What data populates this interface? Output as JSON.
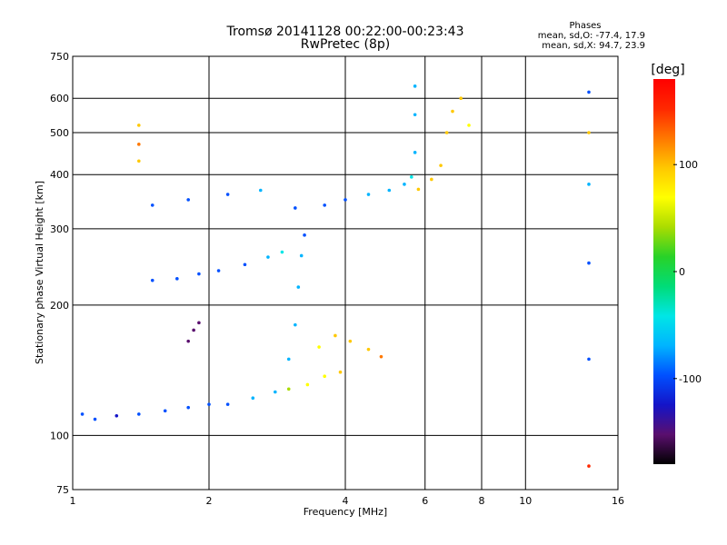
{
  "header": {
    "title": "Tromsø 20141128 00:22:00-00:23:43",
    "subtitle": "RwPretec (8p)"
  },
  "phases": {
    "heading": "Phases",
    "o_line": "mean, sd,O: -77.4, 17.9",
    "x_line": "mean, sd,X:  94.7, 23.9"
  },
  "colorbar": {
    "label": "[deg]",
    "ticks": [
      "100",
      "0",
      "-100"
    ]
  },
  "chart_data": {
    "type": "scatter",
    "title": "Tromsø 20141128 00:22:00-00:23:43",
    "subtitle": "RwPretec (8p)",
    "xlabel": "Frequency [MHz]",
    "ylabel": "Stationary phase Virtual Height [km]",
    "x_scale": "log2",
    "y_scale": "log",
    "xlim": [
      1,
      16
    ],
    "ylim": [
      75,
      750
    ],
    "x_ticks": [
      1,
      2,
      4,
      6,
      8,
      10,
      16
    ],
    "y_ticks": [
      75,
      100,
      200,
      300,
      400,
      500,
      600,
      750
    ],
    "grid": true,
    "colorscale": "rainbow",
    "colorbar_range": [
      -180,
      180
    ],
    "colorbar_ticks": [
      100,
      0,
      -100
    ],
    "colorbar_colors": [
      "#000000",
      "#5a0f6e",
      "#1414c8",
      "#0050ff",
      "#00b4ff",
      "#00e6e6",
      "#00dc78",
      "#28d228",
      "#aadc00",
      "#ffff00",
      "#ffc800",
      "#ff7800",
      "#ff2800",
      "#ff0000"
    ],
    "series": [
      {
        "points": [
          [
            1.05,
            112,
            -110
          ],
          [
            1.12,
            109,
            -105
          ],
          [
            1.25,
            111,
            -115
          ],
          [
            1.4,
            112,
            -110
          ],
          [
            1.6,
            114,
            -100
          ],
          [
            1.8,
            116,
            -95
          ],
          [
            2.0,
            118,
            -90
          ],
          [
            2.2,
            118,
            -85
          ],
          [
            2.5,
            122,
            -80
          ],
          [
            2.8,
            126,
            -60
          ],
          [
            3.0,
            128,
            30
          ],
          [
            3.3,
            131,
            60
          ],
          [
            3.6,
            137,
            80
          ],
          [
            3.9,
            140,
            100
          ]
        ]
      },
      {
        "points": [
          [
            1.5,
            228,
            -105
          ],
          [
            1.7,
            230,
            -100
          ],
          [
            1.9,
            236,
            -95
          ],
          [
            2.1,
            240,
            -90
          ],
          [
            2.4,
            248,
            -85
          ],
          [
            2.7,
            258,
            -80
          ],
          [
            2.9,
            265,
            -40
          ]
        ]
      },
      {
        "points": [
          [
            1.5,
            340,
            -100
          ],
          [
            1.8,
            350,
            -95
          ],
          [
            2.2,
            360,
            -90
          ],
          [
            2.6,
            368,
            -70
          ],
          [
            3.1,
            335,
            -95
          ],
          [
            3.6,
            340,
            -90
          ],
          [
            4.0,
            350,
            -85
          ],
          [
            4.5,
            360,
            -80
          ],
          [
            5.0,
            368,
            -70
          ],
          [
            5.4,
            380,
            -60
          ],
          [
            5.6,
            395,
            -50
          ],
          [
            5.7,
            450,
            -60
          ],
          [
            5.7,
            550,
            -70
          ],
          [
            5.7,
            640,
            -75
          ]
        ]
      },
      {
        "points": [
          [
            5.8,
            370,
            100
          ],
          [
            6.2,
            390,
            110
          ],
          [
            6.5,
            420,
            100
          ],
          [
            6.7,
            500,
            95
          ],
          [
            6.9,
            560,
            90
          ],
          [
            7.2,
            600,
            100
          ],
          [
            7.5,
            520,
            80
          ]
        ]
      },
      {
        "points": [
          [
            3.0,
            150,
            -60
          ],
          [
            3.1,
            180,
            -70
          ],
          [
            3.15,
            220,
            -75
          ],
          [
            3.2,
            260,
            -80
          ],
          [
            3.25,
            290,
            -85
          ]
        ]
      },
      {
        "points": [
          [
            3.5,
            160,
            60
          ],
          [
            3.8,
            170,
            90
          ],
          [
            4.1,
            165,
            100
          ],
          [
            4.5,
            158,
            110
          ],
          [
            4.8,
            152,
            130
          ]
        ]
      },
      {
        "points": [
          [
            1.8,
            165,
            -150
          ],
          [
            1.85,
            175,
            -140
          ],
          [
            1.9,
            182,
            -150
          ]
        ]
      },
      {
        "points": [
          [
            1.4,
            520,
            110
          ],
          [
            1.4,
            470,
            120
          ],
          [
            1.4,
            430,
            110
          ],
          [
            13.8,
            620,
            -90
          ],
          [
            13.8,
            500,
            100
          ],
          [
            13.8,
            380,
            -80
          ],
          [
            13.8,
            250,
            -90
          ],
          [
            13.8,
            150,
            -100
          ],
          [
            13.8,
            85,
            150
          ]
        ]
      }
    ]
  }
}
